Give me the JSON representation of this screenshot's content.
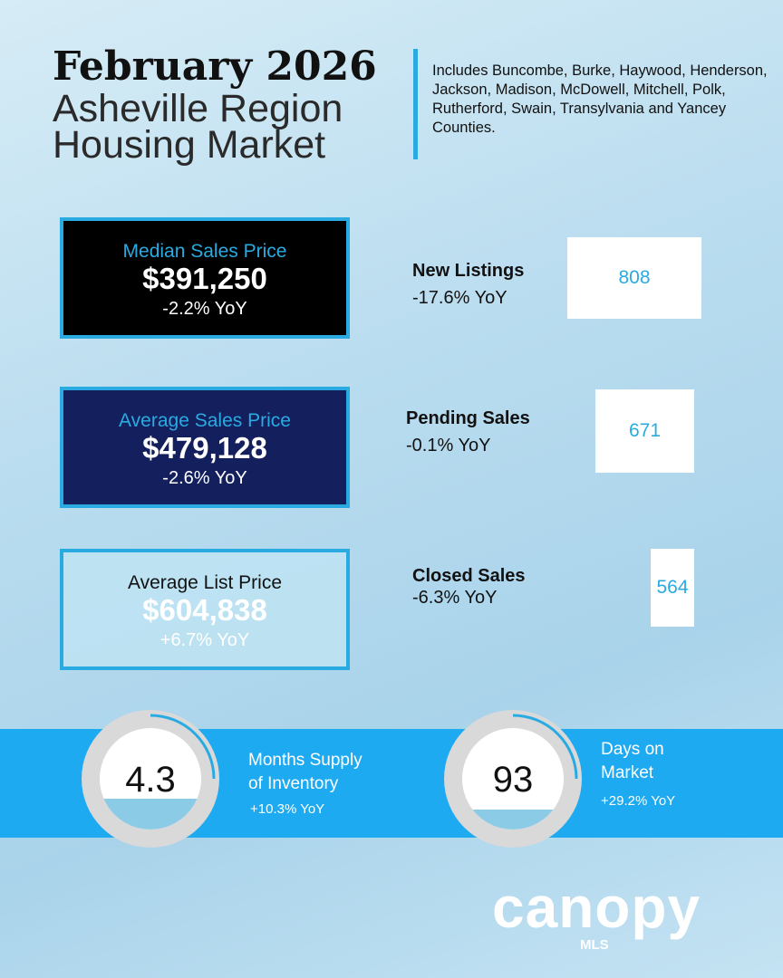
{
  "header": {
    "title": "February 2026",
    "subtitle_lines": [
      "Asheville Region",
      "Housing Market"
    ],
    "note": "Includes Buncombe, Burke, Haywood, Henderson, Jackson, Madison, McDowell, Mitchell, Polk, Rutherford, Swain, Transylvania and Yancey Counties."
  },
  "price_cards": [
    {
      "label": "Median Sales Price",
      "value": "$391,250",
      "change": "-2.2% YoY"
    },
    {
      "label": "Average Sales Price",
      "value": "$479,128",
      "change": "-2.6% YoY"
    },
    {
      "label": "Average List Price",
      "value": "$604,838",
      "change": "+6.7% YoY"
    }
  ],
  "counts": [
    {
      "label": "New Listings",
      "change": "-17.6% YoY",
      "value": "808"
    },
    {
      "label": "Pending Sales",
      "change": "-0.1% YoY",
      "value": "671"
    },
    {
      "label": "Closed Sales",
      "change": "-6.3% YoY",
      "value": "564"
    }
  ],
  "gauges": [
    {
      "value": "4.3",
      "label_lines": [
        "Months Supply",
        "of Inventory"
      ],
      "change": "+10.3% YoY"
    },
    {
      "value": "93",
      "label_lines": [
        "Days on",
        "Market"
      ],
      "change": "+29.2% YoY"
    }
  ],
  "logo": {
    "name": "canopy",
    "sub": "MLS"
  }
}
